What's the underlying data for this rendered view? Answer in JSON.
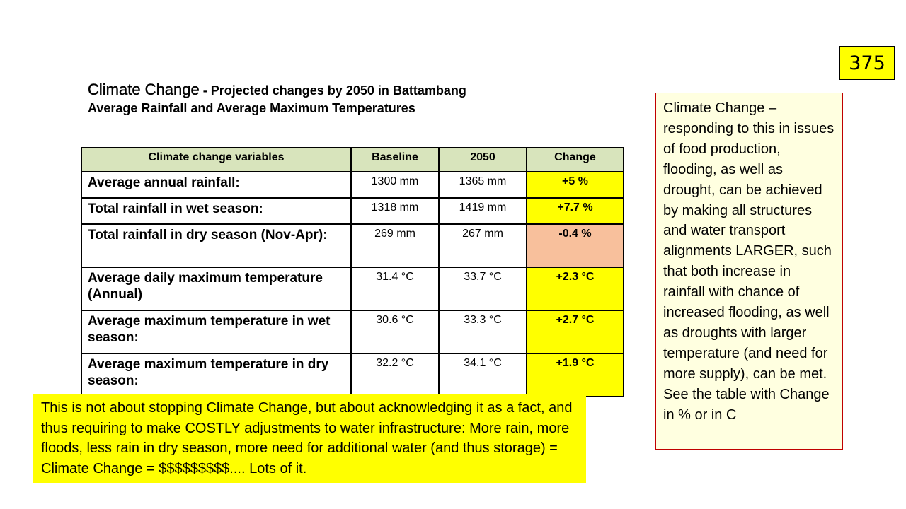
{
  "slide_number": "375",
  "title": {
    "main": "Climate Change",
    "rest": " - Projected changes by 2050 in Battambang",
    "line2": "Average Rainfall and Average Maximum Temperatures"
  },
  "table": {
    "headers": [
      "Climate change variables",
      "Baseline",
      "2050",
      "Change"
    ],
    "rows": [
      {
        "variable": "Average annual rainfall:",
        "baseline": "1300 mm",
        "y2050": "1365 mm",
        "change": "+5 %",
        "change_color": "#ffff00"
      },
      {
        "variable": "Total rainfall in wet season:",
        "baseline": "1318 mm",
        "y2050": "1419 mm",
        "change": "+7.7 %",
        "change_color": "#ffff00"
      },
      {
        "variable": "Total rainfall in dry season (Nov-Apr):",
        "baseline": "269 mm",
        "y2050": "267 mm",
        "change": "-0.4 %",
        "change_color": "#f8c09c"
      },
      {
        "variable": "Average daily maximum temperature (Annual)",
        "baseline": "31.4 °C",
        "y2050": "33.7 °C",
        "change": "+2.3 °C",
        "change_color": "#ffff00"
      },
      {
        "variable": "Average maximum temperature in wet season:",
        "baseline": "30.6 °C",
        "y2050": "33.3 °C",
        "change": "+2.7 °C",
        "change_color": "#ffff00"
      },
      {
        "variable": "Average maximum temperature in dry season:",
        "baseline": "32.2 °C",
        "y2050": "34.1 °C",
        "change": "+1.9 °C",
        "change_color": "#ffff00"
      }
    ]
  },
  "side_note": "Climate Change – responding to this in issues of food production, flooding,  as well as drought, can be achieved by making all structures and water transport alignments LARGER, such that both increase in rainfall with chance of increased flooding, as well as droughts with larger temperature (and need for more supply), can be met.  See the table with Change in % or in C",
  "bottom_note": "This is not about stopping Climate Change, but about acknowledging it as a fact, and thus requiring to make COSTLY adjustments to water infrastructure: More rain, more floods, less rain in dry season, more need for additional water (and thus storage) = Climate Change = $$$$$$$$$.... Lots of it.",
  "colors": {
    "header_bg": "#d8e4bc",
    "highlight_yellow": "#ffff00",
    "highlight_orange": "#f8c09c",
    "side_note_border": "#c00000"
  }
}
